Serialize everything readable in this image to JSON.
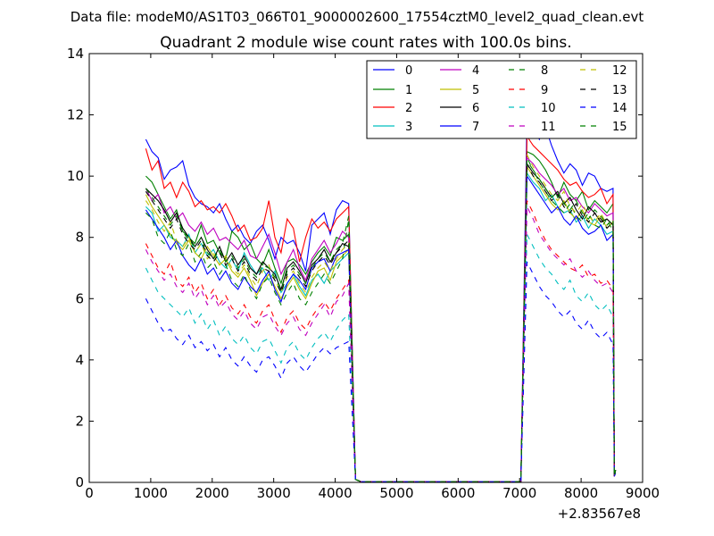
{
  "figure": {
    "suptitle": "Data file: modeM0/AS1T03_066T01_9000002600_17554cztM0_level2_quad_clean.evt"
  },
  "chart_data": {
    "type": "line",
    "title": "Quadrant 2 module wise count rates with 100.0s bins.",
    "xlabel": "",
    "ylabel": "",
    "x_offset_label": "+2.83567e8",
    "xlim": [
      0,
      9000
    ],
    "ylim": [
      0,
      14
    ],
    "xticks": [
      0,
      1000,
      2000,
      3000,
      4000,
      5000,
      6000,
      7000,
      8000,
      9000
    ],
    "yticks": [
      0,
      2,
      4,
      6,
      8,
      10,
      12,
      14
    ],
    "grid": false,
    "legend_position": "top-right",
    "legend_columns": 4,
    "segments": [
      {
        "x_start": 920,
        "x_step": 100,
        "n": 34
      },
      {
        "x_start": 7120,
        "x_step": 100,
        "n": 15
      }
    ],
    "gap": {
      "x": [
        4330,
        4420,
        4520,
        4620,
        6900,
        7020
      ],
      "y": 0.1
    },
    "series": [
      {
        "name": "0",
        "color": "#0000ff",
        "dash": "solid",
        "active": [
          11.2,
          10.8,
          10.6,
          9.9,
          10.2,
          10.3,
          10.5,
          9.7,
          9.3,
          9.1,
          9.0,
          8.8,
          9.1,
          8.6,
          8.2,
          8.4,
          8.0,
          7.8,
          8.2,
          8.4,
          7.9,
          7.3,
          8.0,
          7.8,
          7.9,
          7.5,
          6.9,
          8.4,
          8.6,
          8.8,
          8.1,
          8.9,
          9.2,
          9.1
        ],
        "active2": [
          12.1,
          11.7,
          11.2,
          11.6,
          11.0,
          10.5,
          10.1,
          10.4,
          10.2,
          9.7,
          10.1,
          10.0,
          9.6,
          9.5,
          9.6
        ],
        "tail": [
          0.2,
          0.4
        ]
      },
      {
        "name": "1",
        "color": "#008000",
        "dash": "solid",
        "active": [
          10.0,
          9.8,
          9.4,
          9.0,
          8.6,
          8.9,
          8.2,
          8.0,
          7.8,
          8.4,
          7.8,
          7.9,
          7.5,
          7.3,
          8.2,
          8.0,
          7.6,
          7.8,
          7.3,
          7.1,
          7.6,
          7.0,
          6.5,
          7.2,
          7.3,
          7.1,
          6.8,
          7.2,
          7.5,
          7.7,
          7.4,
          8.0,
          7.9,
          8.1
        ],
        "active2": [
          10.8,
          10.7,
          10.5,
          10.2,
          9.8,
          9.3,
          9.8,
          9.4,
          9.2,
          9.5,
          8.9,
          9.2,
          9.0,
          8.8,
          9.1
        ],
        "tail": [
          0.2,
          0.4
        ]
      },
      {
        "name": "2",
        "color": "#ff0000",
        "dash": "solid",
        "active": [
          10.9,
          10.2,
          10.5,
          9.6,
          9.8,
          9.3,
          9.8,
          9.5,
          9.0,
          9.2,
          8.9,
          9.0,
          8.8,
          9.1,
          8.7,
          8.2,
          8.4,
          7.9,
          8.0,
          8.3,
          9.2,
          8.0,
          7.5,
          8.6,
          8.3,
          7.2,
          8.0,
          8.6,
          8.3,
          8.5,
          8.2,
          8.6,
          8.8,
          9.0
        ],
        "active2": [
          11.3,
          11.0,
          10.8,
          10.6,
          10.4,
          10.2,
          9.9,
          9.7,
          9.8,
          9.5,
          9.3,
          9.4,
          9.6,
          9.1,
          9.4
        ],
        "tail": [
          0.2,
          0.4
        ]
      },
      {
        "name": "3",
        "color": "#00bfbf",
        "dash": "solid",
        "active": [
          9.0,
          8.8,
          8.2,
          8.4,
          8.0,
          7.9,
          7.7,
          8.1,
          7.5,
          7.8,
          7.4,
          7.6,
          7.2,
          7.0,
          7.3,
          6.9,
          7.5,
          7.1,
          6.8,
          7.0,
          6.6,
          6.9,
          6.2,
          6.5,
          6.8,
          6.4,
          6.1,
          6.6,
          6.8,
          6.5,
          6.9,
          7.1,
          7.3,
          7.5
        ],
        "active2": [
          10.1,
          9.8,
          9.6,
          9.2,
          9.4,
          9.0,
          8.8,
          8.9,
          8.5,
          8.7,
          8.3,
          8.6,
          8.4,
          8.1,
          8.2
        ],
        "tail": [
          0.2,
          0.3
        ]
      },
      {
        "name": "4",
        "color": "#bf00bf",
        "dash": "solid",
        "active": [
          9.6,
          9.2,
          9.4,
          8.8,
          9.0,
          8.6,
          8.8,
          8.4,
          8.2,
          8.5,
          8.1,
          8.3,
          7.9,
          8.0,
          7.8,
          7.6,
          7.9,
          7.4,
          7.3,
          7.7,
          8.1,
          7.5,
          6.8,
          7.2,
          7.6,
          7.0,
          6.6,
          7.3,
          7.6,
          7.9,
          7.5,
          7.8,
          8.2,
          8.0
        ],
        "active2": [
          10.6,
          10.4,
          10.1,
          9.9,
          9.7,
          9.4,
          9.6,
          9.2,
          9.3,
          9.0,
          8.8,
          9.1,
          8.9,
          8.7,
          8.8
        ],
        "tail": [
          0.2,
          0.4
        ]
      },
      {
        "name": "5",
        "color": "#bfbf00",
        "dash": "solid",
        "active": [
          9.4,
          9.0,
          8.7,
          8.4,
          8.1,
          7.8,
          7.6,
          7.9,
          7.5,
          7.3,
          7.7,
          7.4,
          7.1,
          7.3,
          6.9,
          6.7,
          7.0,
          6.6,
          6.1,
          6.5,
          6.8,
          6.4,
          6.0,
          6.4,
          6.7,
          6.3,
          6.0,
          6.5,
          6.9,
          7.0,
          6.6,
          7.2,
          7.4,
          7.6
        ],
        "active2": [
          10.3,
          10.0,
          9.7,
          9.4,
          9.1,
          8.9,
          9.2,
          8.8,
          8.6,
          8.9,
          8.5,
          8.4,
          8.7,
          8.3,
          8.5
        ],
        "tail": [
          0.2,
          0.3
        ]
      },
      {
        "name": "6",
        "color": "#000000",
        "dash": "solid",
        "active": [
          9.6,
          9.4,
          9.2,
          8.9,
          8.5,
          8.8,
          8.3,
          8.0,
          7.7,
          8.0,
          7.6,
          7.3,
          7.7,
          7.2,
          7.5,
          7.1,
          7.4,
          7.0,
          6.8,
          7.2,
          7.0,
          6.8,
          6.3,
          7.0,
          7.2,
          6.9,
          6.5,
          7.1,
          7.3,
          7.6,
          7.2,
          7.5,
          7.8,
          7.7
        ],
        "active2": [
          10.4,
          10.1,
          9.9,
          9.6,
          9.3,
          9.5,
          9.1,
          9.3,
          8.9,
          8.6,
          9.0,
          8.8,
          8.5,
          8.6,
          8.4
        ],
        "tail": [
          0.2,
          0.4
        ]
      },
      {
        "name": "7",
        "color": "#0000ff",
        "dash": "solid",
        "active": [
          8.9,
          8.6,
          8.3,
          8.0,
          7.6,
          7.9,
          7.4,
          7.1,
          6.9,
          7.3,
          6.8,
          7.0,
          6.6,
          6.9,
          6.5,
          6.3,
          6.7,
          6.4,
          6.2,
          6.6,
          6.9,
          6.3,
          5.9,
          6.5,
          6.8,
          6.6,
          6.3,
          7.0,
          7.2,
          7.3,
          6.9,
          7.4,
          7.5,
          7.6
        ],
        "active2": [
          10.0,
          9.7,
          9.4,
          9.1,
          8.8,
          9.0,
          8.6,
          8.4,
          8.7,
          8.3,
          8.1,
          8.2,
          8.4,
          7.9,
          8.1
        ],
        "tail": [
          0.2,
          0.4
        ]
      },
      {
        "name": "8",
        "color": "#008000",
        "dash": "dashed",
        "active": [
          8.8,
          8.6,
          8.0,
          7.8,
          8.2,
          7.6,
          7.4,
          7.8,
          7.2,
          7.5,
          7.0,
          7.2,
          6.8,
          7.1,
          6.6,
          6.4,
          6.8,
          6.3,
          6.0,
          6.5,
          6.7,
          6.2,
          5.8,
          6.2,
          6.5,
          6.0,
          5.8,
          6.2,
          6.5,
          6.8,
          6.5,
          6.9,
          7.3,
          8.6
        ],
        "active2": [
          10.5,
          10.2,
          9.8,
          9.5,
          9.2,
          9.0,
          8.8,
          9.1,
          8.7,
          8.5,
          8.8,
          8.4,
          8.3,
          8.6,
          8.2
        ],
        "tail": [
          0.2,
          0.4
        ]
      },
      {
        "name": "9",
        "color": "#ff0000",
        "dash": "dashed",
        "active": [
          7.8,
          7.4,
          7.0,
          6.8,
          7.2,
          6.6,
          6.4,
          6.7,
          6.2,
          6.5,
          6.0,
          6.3,
          5.8,
          6.1,
          5.7,
          5.5,
          5.8,
          5.4,
          5.2,
          5.6,
          5.8,
          5.3,
          4.9,
          5.4,
          5.6,
          5.2,
          5.0,
          5.4,
          5.7,
          5.9,
          5.6,
          6.0,
          6.3,
          6.6
        ],
        "active2": [
          9.2,
          8.8,
          8.3,
          7.9,
          7.6,
          7.4,
          7.2,
          7.0,
          6.9,
          7.1,
          6.7,
          6.8,
          6.5,
          6.6,
          6.3
        ],
        "tail": [
          0.2,
          0.3
        ]
      },
      {
        "name": "10",
        "color": "#00bfbf",
        "dash": "dashed",
        "active": [
          7.0,
          6.6,
          6.2,
          6.0,
          5.8,
          5.6,
          5.4,
          5.7,
          5.2,
          5.5,
          5.0,
          5.3,
          4.8,
          5.1,
          4.7,
          4.5,
          4.8,
          4.4,
          4.2,
          4.6,
          4.7,
          4.3,
          3.9,
          4.4,
          4.6,
          4.2,
          4.0,
          4.4,
          4.7,
          4.9,
          4.6,
          5.0,
          5.3,
          5.5
        ],
        "active2": [
          8.1,
          7.7,
          7.3,
          7.0,
          6.8,
          6.5,
          6.3,
          6.6,
          6.1,
          5.9,
          6.2,
          5.8,
          5.6,
          5.8,
          5.4
        ],
        "tail": [
          0.2,
          0.3
        ]
      },
      {
        "name": "11",
        "color": "#bf00bf",
        "dash": "dashed",
        "active": [
          7.6,
          7.2,
          6.9,
          6.6,
          6.8,
          6.4,
          6.2,
          6.5,
          6.0,
          6.3,
          5.8,
          6.1,
          5.7,
          5.9,
          5.5,
          5.3,
          5.6,
          5.2,
          5.0,
          5.4,
          5.5,
          5.1,
          4.8,
          5.2,
          5.4,
          5.0,
          4.8,
          5.2,
          5.5,
          5.8,
          5.4,
          5.9,
          6.1,
          6.5
        ],
        "active2": [
          9.0,
          8.6,
          8.1,
          7.8,
          7.5,
          7.3,
          7.1,
          7.3,
          6.9,
          6.7,
          6.9,
          6.6,
          6.4,
          6.5,
          6.2
        ],
        "tail": [
          0.2,
          0.3
        ]
      },
      {
        "name": "12",
        "color": "#bfbf00",
        "dash": "dashed",
        "active": [
          9.2,
          8.9,
          8.5,
          8.2,
          8.5,
          7.9,
          7.7,
          8.0,
          7.5,
          7.8,
          7.3,
          7.5,
          7.1,
          7.4,
          7.0,
          6.8,
          7.1,
          6.7,
          6.4,
          6.9,
          7.1,
          6.6,
          6.2,
          6.7,
          6.9,
          6.5,
          6.2,
          6.7,
          7.0,
          7.2,
          6.9,
          7.3,
          7.6,
          7.8
        ],
        "active2": [
          10.7,
          10.3,
          10.0,
          9.7,
          9.4,
          9.2,
          9.5,
          9.0,
          8.8,
          9.1,
          8.7,
          8.5,
          8.8,
          8.4,
          8.6
        ],
        "tail": [
          0.2,
          0.4
        ]
      },
      {
        "name": "13",
        "color": "#000000",
        "dash": "dashed",
        "active": [
          9.5,
          9.2,
          8.9,
          8.6,
          8.3,
          8.6,
          8.1,
          7.8,
          7.6,
          7.9,
          7.4,
          7.2,
          7.5,
          7.1,
          7.3,
          6.9,
          7.2,
          6.8,
          6.6,
          7.0,
          6.9,
          6.6,
          6.2,
          6.8,
          7.0,
          6.7,
          6.4,
          6.9,
          7.2,
          7.4,
          7.1,
          7.5,
          7.7,
          7.9
        ],
        "active2": [
          10.4,
          10.0,
          9.8,
          9.5,
          9.2,
          9.4,
          9.0,
          8.8,
          9.1,
          8.7,
          8.5,
          8.8,
          8.6,
          8.3,
          8.5
        ],
        "tail": [
          0.2,
          0.4
        ]
      },
      {
        "name": "14",
        "color": "#0000ff",
        "dash": "dashed",
        "active": [
          6.0,
          5.6,
          5.2,
          4.9,
          5.0,
          4.7,
          4.5,
          4.8,
          4.4,
          4.6,
          4.3,
          4.5,
          4.1,
          4.4,
          4.0,
          3.8,
          4.1,
          3.8,
          3.6,
          4.0,
          4.1,
          3.8,
          3.4,
          3.9,
          4.1,
          3.8,
          3.6,
          3.9,
          4.2,
          4.4,
          4.2,
          4.4,
          4.5,
          4.6
        ],
        "active2": [
          7.2,
          6.8,
          6.4,
          6.1,
          5.9,
          5.6,
          5.4,
          5.6,
          5.2,
          5.0,
          5.3,
          4.9,
          4.7,
          4.9,
          4.5
        ],
        "tail": [
          0.2,
          0.3
        ]
      },
      {
        "name": "15",
        "color": "#008000",
        "dash": "dashed",
        "active": [
          9.6,
          9.3,
          9.0,
          8.7,
          8.4,
          8.7,
          8.2,
          7.9,
          7.7,
          8.0,
          7.5,
          7.3,
          7.6,
          7.2,
          7.4,
          7.0,
          7.3,
          6.9,
          6.7,
          7.1,
          7.0,
          6.7,
          6.3,
          6.9,
          7.1,
          6.8,
          6.5,
          7.0,
          7.3,
          7.5,
          7.2,
          7.6,
          7.8,
          8.7
        ],
        "active2": [
          10.6,
          10.2,
          9.9,
          9.6,
          9.3,
          9.5,
          9.1,
          8.9,
          9.2,
          8.8,
          8.6,
          8.9,
          8.7,
          8.4,
          8.6
        ],
        "tail": [
          0.2,
          0.4
        ]
      }
    ]
  }
}
